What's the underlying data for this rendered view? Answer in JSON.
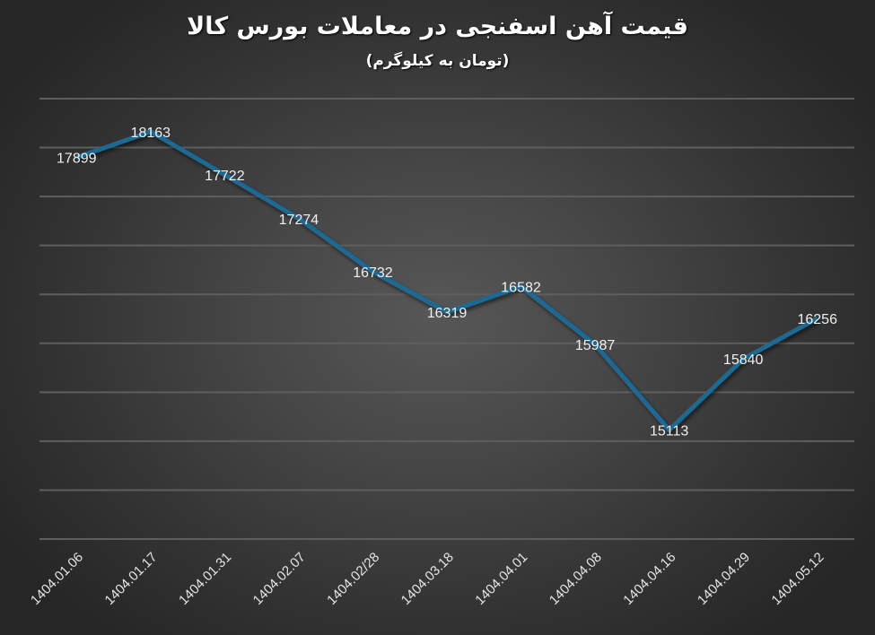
{
  "chart_data": {
    "type": "line",
    "title": "قیمت آهن اسفنجی در معاملات بورس کالا",
    "subtitle": "(تومان به کیلوگرم)",
    "xlabel": "",
    "ylabel": "",
    "categories": [
      "1404.01.06",
      "1404.01.17",
      "1404.01.31",
      "1404.02.07",
      "1404.02/28",
      "1404.03.18",
      "1404.04.01",
      "1404.04.08",
      "1404.04.16",
      "1404.04.29",
      "1404.05.12"
    ],
    "series": [
      {
        "name": "قیمت آهن اسفنجی",
        "values": [
          17899,
          18163,
          17722,
          17274,
          16732,
          16319,
          16582,
          15987,
          15113,
          15840,
          16256
        ],
        "color": "#1f6b94"
      }
    ],
    "ylim": [
      14000,
      18500
    ],
    "ystep": 500,
    "y_axis_labels_visible": false,
    "grid": true,
    "legend": "none",
    "data_labels": true
  },
  "colors": {
    "line": "#1f6b94",
    "grid": "#5e5e5e",
    "text": "#f0f0f0"
  }
}
